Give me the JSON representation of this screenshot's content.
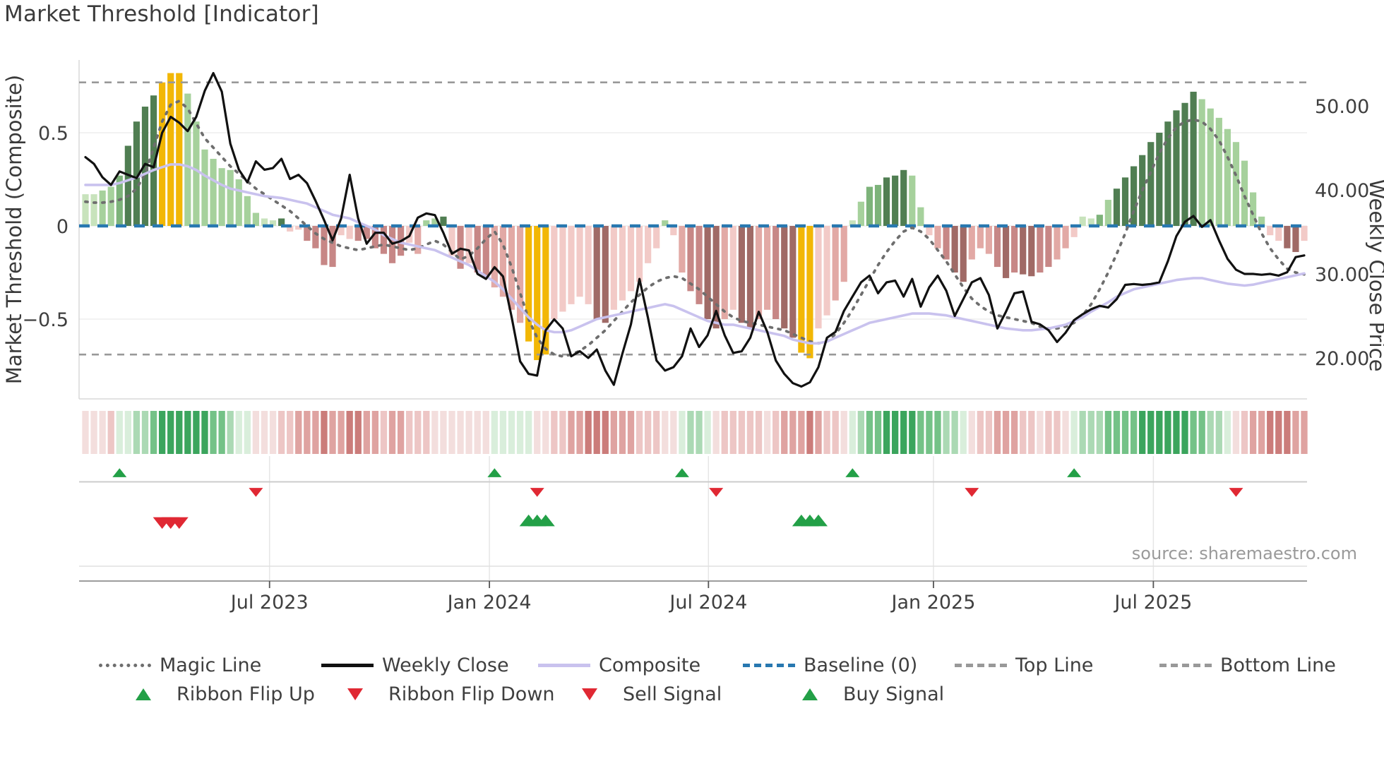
{
  "chart_data": {
    "type": "bar",
    "title": "Market Threshold [Indicator]",
    "source_text": "source: sharemaestro.com",
    "x_axis": {
      "tick_labels": [
        "Jul 2023",
        "Jan 2024",
        "Jul 2024",
        "Jan 2025",
        "Jul 2025"
      ],
      "tick_weeks": [
        21.6,
        47.4,
        73.1,
        99.5,
        125.3
      ],
      "n_weeks": 144
    },
    "left_axis": {
      "label": "Market Threshold (Composite)",
      "tick_labels": [
        "0.5",
        "0",
        "−0.5"
      ],
      "tick_values": [
        0.5,
        0,
        -0.5
      ],
      "range": [
        -0.92,
        0.89
      ]
    },
    "right_axis": {
      "label": "Weekly Close Price",
      "tick_labels": [
        "50.00",
        "40.00",
        "30.00",
        "20.00"
      ],
      "tick_values": [
        50,
        40,
        30,
        20
      ]
    },
    "reference_lines": {
      "baseline": 0,
      "top_line": 0.77,
      "bottom_line": -0.69
    },
    "series": {
      "composite_bars": {
        "values": [
          0.17,
          0.17,
          0.19,
          0.21,
          0.27,
          0.43,
          0.56,
          0.64,
          0.7,
          0.77,
          0.82,
          0.82,
          0.71,
          0.56,
          0.41,
          0.36,
          0.31,
          0.3,
          0.25,
          0.16,
          0.07,
          0.04,
          0.03,
          0.04,
          -0.03,
          -0.02,
          -0.08,
          -0.12,
          -0.21,
          -0.22,
          -0.05,
          -0.07,
          -0.08,
          -0.07,
          -0.12,
          -0.15,
          -0.2,
          -0.16,
          -0.09,
          -0.15,
          0.03,
          0.04,
          0.05,
          -0.16,
          -0.23,
          -0.2,
          -0.25,
          -0.28,
          -0.33,
          -0.38,
          -0.45,
          -0.52,
          -0.62,
          -0.72,
          -0.69,
          -0.5,
          -0.46,
          -0.42,
          -0.38,
          -0.42,
          -0.5,
          -0.52,
          -0.45,
          -0.4,
          -0.35,
          -0.3,
          -0.2,
          -0.12,
          0.03,
          -0.05,
          -0.25,
          -0.35,
          -0.42,
          -0.5,
          -0.55,
          -0.5,
          -0.45,
          -0.52,
          -0.55,
          -0.5,
          -0.45,
          -0.5,
          -0.55,
          -0.6,
          -0.68,
          -0.71,
          -0.55,
          -0.48,
          -0.4,
          -0.3,
          0.03,
          0.13,
          0.21,
          0.22,
          0.26,
          0.27,
          0.3,
          0.27,
          0.1,
          -0.05,
          -0.12,
          -0.18,
          -0.25,
          -0.3,
          -0.18,
          -0.12,
          -0.15,
          -0.22,
          -0.28,
          -0.25,
          -0.26,
          -0.27,
          -0.25,
          -0.22,
          -0.18,
          -0.12,
          -0.06,
          0.05,
          0.04,
          0.06,
          0.14,
          0.2,
          0.26,
          0.32,
          0.38,
          0.45,
          0.5,
          0.56,
          0.62,
          0.66,
          0.72,
          0.68,
          0.63,
          0.58,
          0.52,
          0.45,
          0.35,
          0.18,
          0.05,
          -0.05,
          -0.08,
          -0.12,
          -0.14,
          -0.08
        ],
        "styles": [
          "g1",
          "g1",
          "g2",
          "g2",
          "g3",
          "g4",
          "g4",
          "g4",
          "g4",
          "gold",
          "gold",
          "gold",
          "g2",
          "g2",
          "g2",
          "g2",
          "g2",
          "g2",
          "g2",
          "g2",
          "g2",
          "g1",
          "g1",
          "g4",
          "r1",
          "r1",
          "r3",
          "r3",
          "r3",
          "r3",
          "r1",
          "r1",
          "r3",
          "r3",
          "r3",
          "r3",
          "r3",
          "r3",
          "r1",
          "r2",
          "g2",
          "g2",
          "g4",
          "r1",
          "r3",
          "r1",
          "r3",
          "r3",
          "r2",
          "r2",
          "r2",
          "r2",
          "gold",
          "gold",
          "gold",
          "r1",
          "r1",
          "r1",
          "r1",
          "r1",
          "r4",
          "r4",
          "r1",
          "r1",
          "r1",
          "r1",
          "r1",
          "r1",
          "g2",
          "r1",
          "r2",
          "r3",
          "r3",
          "r4",
          "r4",
          "r2",
          "r1",
          "r4",
          "r4",
          "r2",
          "r2",
          "r3",
          "r4",
          "r4",
          "gold",
          "gold",
          "r1",
          "r1",
          "r2",
          "r2",
          "g1",
          "g2",
          "g3",
          "g3",
          "g4",
          "g4",
          "g4",
          "g2",
          "g2",
          "r1",
          "r2",
          "r3",
          "r4",
          "r4",
          "r2",
          "r2",
          "r2",
          "r3",
          "r4",
          "r3",
          "r4",
          "r4",
          "r3",
          "r3",
          "r2",
          "r2",
          "r1",
          "g1",
          "g1",
          "g3",
          "g2",
          "g4",
          "g4",
          "g4",
          "g4",
          "g4",
          "g4",
          "g4",
          "g4",
          "g4",
          "g4",
          "g2",
          "g2",
          "g2",
          "g2",
          "g2",
          "g2",
          "g2",
          "g2",
          "r1",
          "r1",
          "r4",
          "r4",
          "r1"
        ]
      },
      "weekly_close": [
        43.9,
        43.1,
        41.5,
        40.6,
        42.2,
        41.8,
        41.4,
        43.1,
        42.7,
        46.8,
        48.7,
        48.0,
        47.0,
        48.7,
        51.8,
        53.9,
        51.7,
        45.5,
        42.4,
        40.9,
        43.4,
        42.4,
        42.6,
        43.7,
        41.3,
        41.8,
        40.8,
        38.7,
        36.4,
        34.0,
        36.6,
        41.8,
        36.6,
        33.6,
        34.9,
        34.9,
        33.6,
        33.9,
        34.5,
        36.7,
        37.2,
        37.0,
        34.9,
        32.4,
        33.0,
        32.8,
        30.0,
        29.4,
        30.8,
        29.7,
        24.9,
        19.6,
        18.1,
        17.9,
        23.3,
        24.6,
        23.5,
        20.2,
        20.8,
        20.0,
        21.0,
        18.5,
        16.8,
        20.5,
        24.0,
        29.4,
        24.8,
        19.7,
        18.5,
        18.9,
        20.2,
        23.5,
        21.3,
        22.7,
        25.6,
        22.7,
        20.6,
        20.8,
        22.4,
        25.5,
        23.1,
        19.7,
        18.1,
        17.0,
        16.6,
        17.1,
        18.9,
        22.4,
        23.1,
        25.6,
        27.3,
        29.0,
        29.8,
        27.7,
        29.0,
        29.2,
        27.3,
        29.4,
        26.1,
        28.4,
        29.8,
        28.0,
        25.0,
        27.0,
        29.0,
        29.5,
        27.5,
        23.5,
        25.5,
        27.7,
        27.9,
        24.3,
        24.0,
        23.3,
        21.9,
        23.0,
        24.5,
        25.2,
        25.8,
        26.2,
        26.0,
        27.0,
        28.7,
        28.8,
        28.7,
        28.8,
        29.0,
        31.5,
        34.5,
        36.2,
        36.9,
        35.6,
        36.4,
        34.0,
        31.8,
        30.5,
        30.0,
        30.0,
        29.9,
        30.0,
        29.8,
        30.2,
        32.0,
        32.2
      ],
      "magic_line": [
        0.13,
        0.125,
        0.125,
        0.13,
        0.14,
        0.16,
        0.2,
        0.28,
        0.42,
        0.56,
        0.65,
        0.67,
        0.63,
        0.55,
        0.47,
        0.42,
        0.37,
        0.32,
        0.28,
        0.24,
        0.2,
        0.17,
        0.14,
        0.11,
        0.08,
        0.04,
        0.0,
        -0.04,
        -0.07,
        -0.09,
        -0.11,
        -0.12,
        -0.13,
        -0.12,
        -0.11,
        -0.1,
        -0.11,
        -0.12,
        -0.13,
        -0.12,
        -0.1,
        -0.08,
        -0.1,
        -0.14,
        -0.18,
        -0.16,
        -0.12,
        -0.07,
        -0.03,
        -0.1,
        -0.22,
        -0.36,
        -0.5,
        -0.6,
        -0.66,
        -0.69,
        -0.7,
        -0.69,
        -0.67,
        -0.64,
        -0.6,
        -0.56,
        -0.51,
        -0.46,
        -0.41,
        -0.37,
        -0.33,
        -0.3,
        -0.28,
        -0.27,
        -0.28,
        -0.31,
        -0.34,
        -0.38,
        -0.42,
        -0.46,
        -0.49,
        -0.51,
        -0.52,
        -0.53,
        -0.54,
        -0.55,
        -0.56,
        -0.58,
        -0.6,
        -0.62,
        -0.63,
        -0.62,
        -0.58,
        -0.52,
        -0.45,
        -0.37,
        -0.29,
        -0.21,
        -0.14,
        -0.08,
        -0.03,
        -0.01,
        -0.03,
        -0.07,
        -0.13,
        -0.19,
        -0.26,
        -0.33,
        -0.39,
        -0.43,
        -0.46,
        -0.48,
        -0.49,
        -0.5,
        -0.51,
        -0.52,
        -0.54,
        -0.55,
        -0.55,
        -0.54,
        -0.52,
        -0.48,
        -0.42,
        -0.34,
        -0.25,
        -0.15,
        -0.04,
        0.08,
        0.19,
        0.29,
        0.39,
        0.47,
        0.53,
        0.56,
        0.57,
        0.56,
        0.52,
        0.46,
        0.37,
        0.27,
        0.16,
        0.06,
        -0.04,
        -0.12,
        -0.18,
        -0.23,
        -0.25,
        -0.26
      ],
      "composite_line": [
        0.22,
        0.22,
        0.22,
        0.22,
        0.23,
        0.245,
        0.26,
        0.28,
        0.3,
        0.315,
        0.33,
        0.33,
        0.32,
        0.3,
        0.27,
        0.245,
        0.22,
        0.2,
        0.19,
        0.18,
        0.17,
        0.16,
        0.155,
        0.15,
        0.14,
        0.13,
        0.12,
        0.1,
        0.08,
        0.06,
        0.05,
        0.04,
        0.02,
        0.0,
        -0.02,
        -0.05,
        -0.07,
        -0.09,
        -0.1,
        -0.11,
        -0.12,
        -0.13,
        -0.15,
        -0.17,
        -0.19,
        -0.21,
        -0.24,
        -0.27,
        -0.3,
        -0.34,
        -0.39,
        -0.44,
        -0.49,
        -0.53,
        -0.56,
        -0.57,
        -0.57,
        -0.56,
        -0.54,
        -0.52,
        -0.5,
        -0.49,
        -0.48,
        -0.47,
        -0.46,
        -0.45,
        -0.44,
        -0.43,
        -0.42,
        -0.43,
        -0.45,
        -0.47,
        -0.49,
        -0.51,
        -0.52,
        -0.53,
        -0.53,
        -0.54,
        -0.55,
        -0.56,
        -0.57,
        -0.58,
        -0.59,
        -0.61,
        -0.62,
        -0.63,
        -0.63,
        -0.62,
        -0.6,
        -0.58,
        -0.56,
        -0.54,
        -0.52,
        -0.51,
        -0.5,
        -0.49,
        -0.48,
        -0.47,
        -0.47,
        -0.47,
        -0.475,
        -0.48,
        -0.49,
        -0.5,
        -0.51,
        -0.52,
        -0.53,
        -0.54,
        -0.55,
        -0.555,
        -0.56,
        -0.56,
        -0.555,
        -0.55,
        -0.54,
        -0.53,
        -0.51,
        -0.49,
        -0.46,
        -0.435,
        -0.41,
        -0.38,
        -0.36,
        -0.34,
        -0.33,
        -0.32,
        -0.31,
        -0.3,
        -0.29,
        -0.285,
        -0.28,
        -0.28,
        -0.29,
        -0.3,
        -0.31,
        -0.315,
        -0.32,
        -0.315,
        -0.305,
        -0.295,
        -0.285,
        -0.275,
        -0.265,
        -0.255
      ]
    },
    "ribbon": [
      -1,
      -1,
      -1,
      -2,
      1,
      1,
      2,
      2,
      3,
      4,
      4,
      4,
      4,
      4,
      4,
      3,
      3,
      2,
      1,
      1,
      -1,
      -1,
      -1,
      -2,
      -2,
      -3,
      -3,
      -3,
      -4,
      -3,
      -3,
      -4,
      -4,
      -3,
      -3,
      -2,
      -3,
      -3,
      -2,
      -2,
      -2,
      -1,
      -1,
      -1,
      -1,
      -1,
      -1,
      -1,
      1,
      1,
      1,
      1,
      1,
      -1,
      -1,
      -2,
      -2,
      -3,
      -3,
      -4,
      -4,
      -4,
      -3,
      -3,
      -3,
      -2,
      -2,
      -2,
      -1,
      -1,
      1,
      2,
      2,
      1,
      -1,
      -2,
      -2,
      -2,
      -2,
      -2,
      -1,
      -2,
      -3,
      -3,
      -3,
      -4,
      -3,
      -2,
      -2,
      -1,
      1,
      2,
      3,
      3,
      4,
      4,
      4,
      4,
      3,
      3,
      3,
      2,
      2,
      1,
      -1,
      -2,
      -2,
      -3,
      -3,
      -3,
      -2,
      -2,
      -1,
      -2,
      -2,
      -1,
      1,
      2,
      2,
      2,
      3,
      3,
      3,
      3,
      4,
      4,
      4,
      4,
      4,
      4,
      3,
      3,
      2,
      2,
      1,
      -1,
      -2,
      -3,
      -3,
      -4,
      -4,
      -4,
      -3,
      -3
    ],
    "signals": {
      "ribbon_flip_up_weeks": [
        4,
        48,
        70,
        90,
        116
      ],
      "ribbon_flip_down_weeks": [
        20,
        53,
        74,
        104,
        135
      ],
      "sell_signal_weeks": [
        9,
        10,
        11
      ],
      "buy_signal_weeks": [
        52,
        53,
        54,
        84,
        85,
        86
      ]
    },
    "palette": {
      "bar_g1": "#c8e3bc",
      "bar_g2": "#a6d19c",
      "bar_g3": "#7db37a",
      "bar_g4": "#507e52",
      "bar_gold": "#f2b705",
      "bar_r1": "#f2cac7",
      "bar_r2": "#e2a9a5",
      "bar_r3": "#c78786",
      "bar_r4": "#a06a66",
      "ribbon_g1": "#d9eedb",
      "ribbon_g2": "#abd9b4",
      "ribbon_g3": "#74c287",
      "ribbon_g4": "#3ba55d",
      "ribbon_r1": "#f3dedd",
      "ribbon_r2": "#edc6c5",
      "ribbon_r3": "#dfa3a1",
      "ribbon_r4": "#cb7c7a",
      "weekly_close": "#111111",
      "magic_line": "#6e6e6e",
      "composite_line": "#c9c2ee",
      "baseline": "#2878b0",
      "threshold_dash": "#999999",
      "signal_green": "#23a047",
      "signal_red": "#e02833",
      "grid": "#ededed",
      "tick_text": "#3f3f3f"
    },
    "legend": [
      {
        "id": "magic-line",
        "label": "Magic Line"
      },
      {
        "id": "weekly-close",
        "label": "Weekly Close"
      },
      {
        "id": "composite",
        "label": "Composite"
      },
      {
        "id": "baseline",
        "label": "Baseline (0)"
      },
      {
        "id": "top-line",
        "label": "Top Line"
      },
      {
        "id": "bottom-line",
        "label": "Bottom Line"
      },
      {
        "id": "ribbon-flip-up",
        "label": "Ribbon Flip Up"
      },
      {
        "id": "ribbon-flip-down",
        "label": "Ribbon Flip Down"
      },
      {
        "id": "sell-signal",
        "label": "Sell Signal"
      },
      {
        "id": "buy-signal",
        "label": "Buy Signal"
      }
    ]
  }
}
